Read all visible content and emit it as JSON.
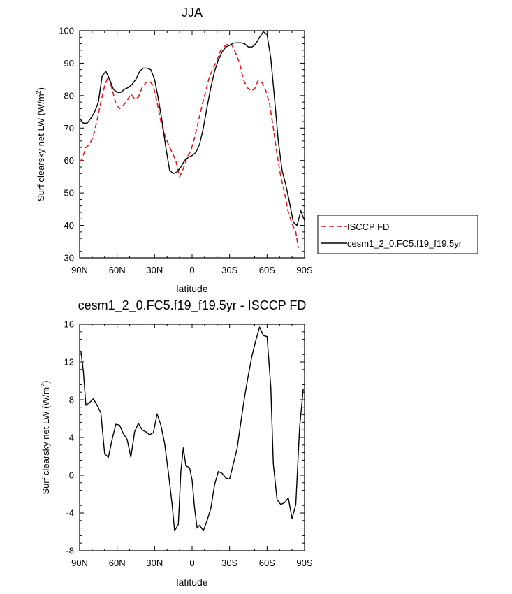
{
  "chart_data": [
    {
      "type": "line",
      "title": "JJA",
      "xlabel": "latitude",
      "ylabel": "Surf clearsky net LW (W/m",
      "ylabel_superscript": "2",
      "ylabel_suffix": ")",
      "xlim": [
        -90,
        90
      ],
      "ylim": [
        30,
        100
      ],
      "xticks": [
        -90,
        -60,
        -30,
        0,
        30,
        60,
        90
      ],
      "xtick_labels": [
        "90N",
        "60N",
        "30N",
        "0",
        "30S",
        "60S",
        "90S"
      ],
      "yticks": [
        30,
        40,
        50,
        60,
        70,
        80,
        90,
        100
      ],
      "ytick_labels": [
        "30",
        "40",
        "50",
        "60",
        "70",
        "80",
        "90",
        "100"
      ],
      "legend": {
        "placement": "right"
      },
      "series": [
        {
          "name": "ISCCP FD",
          "color": "#e8171b",
          "dash": "dashed",
          "points": [
            [
              -90,
              59.5
            ],
            [
              -88,
              60.5
            ],
            [
              -85,
              64
            ],
            [
              -82,
              65
            ],
            [
              -79,
              67.5
            ],
            [
              -76,
              72.5
            ],
            [
              -73,
              78
            ],
            [
              -70,
              83
            ],
            [
              -67,
              86
            ],
            [
              -64,
              82
            ],
            [
              -61,
              77.5
            ],
            [
              -58,
              76
            ],
            [
              -55,
              77
            ],
            [
              -52,
              78.5
            ],
            [
              -49,
              80.5
            ],
            [
              -46,
              79
            ],
            [
              -43,
              79.5
            ],
            [
              -40,
              82.5
            ],
            [
              -37,
              84
            ],
            [
              -34,
              84.5
            ],
            [
              -31,
              83
            ],
            [
              -28,
              78
            ],
            [
              -25,
              72
            ],
            [
              -22,
              68
            ],
            [
              -19,
              65
            ],
            [
              -16,
              62.5
            ],
            [
              -13,
              60
            ],
            [
              -10,
              55
            ],
            [
              -7,
              57.5
            ],
            [
              -4,
              61
            ],
            [
              -1,
              63
            ],
            [
              2,
              67
            ],
            [
              5,
              72
            ],
            [
              8,
              77
            ],
            [
              11,
              81.5
            ],
            [
              14,
              86
            ],
            [
              17,
              88.5
            ],
            [
              20,
              91
            ],
            [
              23,
              94
            ],
            [
              26,
              95.2
            ],
            [
              29,
              96
            ],
            [
              32,
              95.5
            ],
            [
              35,
              93
            ],
            [
              38,
              90
            ],
            [
              41,
              85
            ],
            [
              44,
              82.5
            ],
            [
              47,
              81.5
            ],
            [
              50,
              82
            ],
            [
              53,
              84.8
            ],
            [
              56,
              84
            ],
            [
              59,
              81.5
            ],
            [
              62,
              77.5
            ],
            [
              65,
              70
            ],
            [
              68,
              62
            ],
            [
              71,
              55
            ],
            [
              74,
              50
            ],
            [
              77,
              44
            ],
            [
              80,
              40.5
            ],
            [
              83,
              38
            ],
            [
              85,
              33
            ]
          ]
        },
        {
          "name": "cesm1_2_0.FC5.f19_f19.5yr",
          "color": "#000000",
          "dash": "solid",
          "points": [
            [
              -90,
              73
            ],
            [
              -87,
              71.5
            ],
            [
              -84,
              71.5
            ],
            [
              -81,
              73
            ],
            [
              -78,
              75
            ],
            [
              -75,
              78
            ],
            [
              -72,
              86
            ],
            [
              -69,
              87.5
            ],
            [
              -66,
              85
            ],
            [
              -63,
              82
            ],
            [
              -60,
              81
            ],
            [
              -57,
              81
            ],
            [
              -54,
              82
            ],
            [
              -51,
              82.5
            ],
            [
              -48,
              83.5
            ],
            [
              -45,
              85
            ],
            [
              -42,
              87.5
            ],
            [
              -39,
              88.5
            ],
            [
              -36,
              88.5
            ],
            [
              -33,
              88
            ],
            [
              -30,
              85
            ],
            [
              -27,
              79
            ],
            [
              -24,
              72
            ],
            [
              -21,
              64
            ],
            [
              -18,
              57
            ],
            [
              -15,
              56
            ],
            [
              -12,
              56.5
            ],
            [
              -9,
              58
            ],
            [
              -6,
              60
            ],
            [
              -3,
              61
            ],
            [
              0,
              61.5
            ],
            [
              3,
              62.5
            ],
            [
              6,
              65
            ],
            [
              9,
              70
            ],
            [
              12,
              76.5
            ],
            [
              15,
              82.5
            ],
            [
              18,
              87.5
            ],
            [
              21,
              91
            ],
            [
              24,
              93.5
            ],
            [
              27,
              95
            ],
            [
              30,
              95.5
            ],
            [
              33,
              96.2
            ],
            [
              36,
              96.3
            ],
            [
              39,
              96.3
            ],
            [
              42,
              96
            ],
            [
              45,
              95
            ],
            [
              48,
              95
            ],
            [
              51,
              96
            ],
            [
              54,
              98
            ],
            [
              57,
              99.7
            ],
            [
              60,
              98.8
            ],
            [
              63,
              91.5
            ],
            [
              66,
              79
            ],
            [
              69,
              66
            ],
            [
              72,
              57
            ],
            [
              75,
              52.5
            ],
            [
              78,
              47
            ],
            [
              81,
              41
            ],
            [
              84,
              40
            ],
            [
              87,
              44.5
            ],
            [
              90,
              41.5
            ]
          ]
        }
      ]
    },
    {
      "type": "line",
      "title": "cesm1_2_0.FC5.f19_f19.5yr - ISCCP FD",
      "xlabel": "latitude",
      "ylabel": "Surf clearsky net LW (W/m",
      "ylabel_superscript": "2",
      "ylabel_suffix": ")",
      "xlim": [
        -90,
        90
      ],
      "ylim": [
        -8,
        16
      ],
      "xticks": [
        -90,
        -60,
        -30,
        0,
        30,
        60,
        90
      ],
      "xtick_labels": [
        "90N",
        "60N",
        "30N",
        "0",
        "30S",
        "60S",
        "90S"
      ],
      "yticks": [
        -8,
        -4,
        0,
        4,
        8,
        12,
        16
      ],
      "ytick_labels": [
        "-8",
        "-4",
        "0",
        "4",
        "8",
        "12",
        "16"
      ],
      "series": [
        {
          "color": "#000000",
          "dash": "solid",
          "points": [
            [
              -89,
              13.2
            ],
            [
              -87,
              11
            ],
            [
              -85,
              7.4
            ],
            [
              -82,
              7.7
            ],
            [
              -79,
              8.1
            ],
            [
              -76,
              7.4
            ],
            [
              -73,
              6.6
            ],
            [
              -70,
              2.3
            ],
            [
              -67,
              1.9
            ],
            [
              -64,
              3.8
            ],
            [
              -61,
              5.4
            ],
            [
              -58,
              5.3
            ],
            [
              -55,
              4.4
            ],
            [
              -52,
              3.8
            ],
            [
              -49,
              1.9
            ],
            [
              -46,
              4.6
            ],
            [
              -43,
              5.5
            ],
            [
              -40,
              4.8
            ],
            [
              -37,
              4.6
            ],
            [
              -34,
              4.3
            ],
            [
              -31,
              4.5
            ],
            [
              -28,
              6.5
            ],
            [
              -25,
              5.3
            ],
            [
              -22,
              3.4
            ],
            [
              -19,
              0.3
            ],
            [
              -16,
              -3.1
            ],
            [
              -14,
              -5.9
            ],
            [
              -11,
              -5.2
            ],
            [
              -9,
              0.4
            ],
            [
              -7,
              2.9
            ],
            [
              -5,
              1
            ],
            [
              -2,
              0.8
            ],
            [
              0,
              -0.5
            ],
            [
              2,
              -3.5
            ],
            [
              4,
              -5.6
            ],
            [
              6,
              -5.3
            ],
            [
              9,
              -5.9
            ],
            [
              12,
              -4.8
            ],
            [
              15,
              -3.5
            ],
            [
              18,
              -1
            ],
            [
              21,
              0.4
            ],
            [
              24,
              0.2
            ],
            [
              27,
              -0.3
            ],
            [
              30,
              -0.4
            ],
            [
              33,
              1.2
            ],
            [
              36,
              2.8
            ],
            [
              39,
              5.6
            ],
            [
              42,
              8.3
            ],
            [
              45,
              10.6
            ],
            [
              48,
              12.7
            ],
            [
              51,
              14.3
            ],
            [
              54,
              15.7
            ],
            [
              57,
              14.8
            ],
            [
              60,
              14.7
            ],
            [
              63,
              9.3
            ],
            [
              65,
              1.2
            ],
            [
              68,
              -2.6
            ],
            [
              71,
              -3.1
            ],
            [
              74,
              -2.9
            ],
            [
              77,
              -2.4
            ],
            [
              80,
              -4.6
            ],
            [
              83,
              -3.1
            ],
            [
              86,
              5
            ],
            [
              89,
              9.2
            ]
          ]
        }
      ]
    }
  ]
}
